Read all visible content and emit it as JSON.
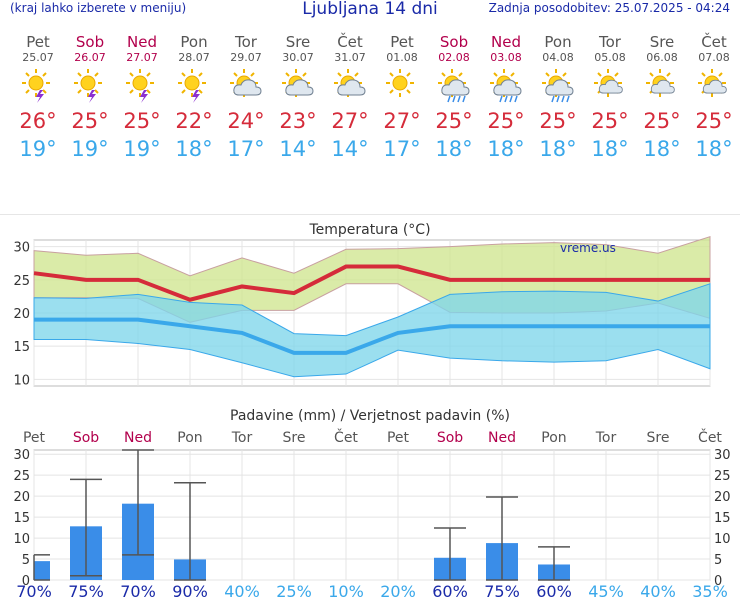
{
  "header": {
    "menu_hint": "(kraj lahko izberete v meniju)",
    "title": "Ljubljana 14 dni",
    "updated": "Zadnja posodobitev: 25.07.2025 - 04:24"
  },
  "days": [
    {
      "name": "Pet",
      "date": "25.07",
      "weekend": false,
      "icon": "sun-cloud-thunder-icon",
      "tmax": "26°",
      "tmin": "19°"
    },
    {
      "name": "Sob",
      "date": "26.07",
      "weekend": true,
      "icon": "sun-cloud-thunder-icon",
      "tmax": "25°",
      "tmin": "19°"
    },
    {
      "name": "Ned",
      "date": "27.07",
      "weekend": true,
      "icon": "sun-cloud-thunder-icon",
      "tmax": "25°",
      "tmin": "19°"
    },
    {
      "name": "Pon",
      "date": "28.07",
      "weekend": false,
      "icon": "sun-cloud-thunder-icon",
      "tmax": "22°",
      "tmin": "18°"
    },
    {
      "name": "Tor",
      "date": "29.07",
      "weekend": false,
      "icon": "sun-cloud-icon",
      "tmax": "24°",
      "tmin": "17°"
    },
    {
      "name": "Sre",
      "date": "30.07",
      "weekend": false,
      "icon": "sun-cloud-icon",
      "tmax": "23°",
      "tmin": "14°"
    },
    {
      "name": "Čet",
      "date": "31.07",
      "weekend": false,
      "icon": "sun-cloud-icon",
      "tmax": "27°",
      "tmin": "14°"
    },
    {
      "name": "Pet",
      "date": "01.08",
      "weekend": false,
      "icon": "sun-icon",
      "tmax": "27°",
      "tmin": "17°"
    },
    {
      "name": "Sob",
      "date": "02.08",
      "weekend": true,
      "icon": "sun-cloud-rain-icon",
      "tmax": "25°",
      "tmin": "18°"
    },
    {
      "name": "Ned",
      "date": "03.08",
      "weekend": true,
      "icon": "sun-cloud-rain-icon",
      "tmax": "25°",
      "tmin": "18°"
    },
    {
      "name": "Pon",
      "date": "04.08",
      "weekend": false,
      "icon": "sun-cloud-rain-icon",
      "tmax": "25°",
      "tmin": "18°"
    },
    {
      "name": "Tor",
      "date": "05.08",
      "weekend": false,
      "icon": "sun-cloud-light-icon",
      "tmax": "25°",
      "tmin": "18°"
    },
    {
      "name": "Sre",
      "date": "06.08",
      "weekend": false,
      "icon": "sun-cloud-light-icon",
      "tmax": "25°",
      "tmin": "18°"
    },
    {
      "name": "Čet",
      "date": "07.08",
      "weekend": false,
      "icon": "sun-cloud-light-icon",
      "tmax": "25°",
      "tmin": "18°"
    }
  ],
  "colors": {
    "max": "#d52b3a",
    "min": "#3aa8ea",
    "weekend": "#b2004c",
    "bar": "#3a8de8",
    "prob_low": "#3aa8ea",
    "prob_high": "#1a2aa8"
  },
  "chart_data": [
    {
      "type": "line",
      "title": "Temperatura (°C)",
      "watermark": "vreme.us",
      "ylim": [
        9,
        31
      ],
      "yticks": [
        10,
        15,
        20,
        25,
        30
      ],
      "grid": true,
      "categories": [
        "Pet",
        "Sob",
        "Ned",
        "Pon",
        "Tor",
        "Sre",
        "Čet",
        "Pet",
        "Sob",
        "Ned",
        "Pon",
        "Tor",
        "Sre",
        "Čet"
      ],
      "series": [
        {
          "role": "max",
          "values": [
            26,
            25,
            25,
            22,
            24,
            23,
            27,
            27,
            25,
            25,
            25,
            25,
            25,
            25
          ]
        },
        {
          "role": "max-range-high",
          "values": [
            29.4,
            28.7,
            29,
            25.6,
            28.3,
            26,
            29.6,
            29.7,
            30,
            30.4,
            30.6,
            30.3,
            29,
            31.5
          ]
        },
        {
          "role": "max-range-low",
          "values": [
            22.3,
            22.3,
            22.2,
            18.6,
            20.4,
            20.4,
            24.4,
            24.4,
            20.1,
            20,
            20,
            20.3,
            21.5,
            19.2
          ]
        },
        {
          "role": "min",
          "values": [
            19,
            19,
            19,
            18,
            17,
            14,
            14,
            17,
            18,
            18,
            18,
            18,
            18,
            18
          ]
        },
        {
          "role": "min-range-high",
          "values": [
            22.3,
            22.2,
            22.8,
            21.6,
            21.2,
            16.9,
            16.6,
            19.4,
            22.8,
            23.2,
            23.3,
            23.1,
            21.8,
            24.4
          ]
        },
        {
          "role": "min-range-low",
          "values": [
            16,
            16,
            15.4,
            14.5,
            12.5,
            10.4,
            10.8,
            14.4,
            13.2,
            12.8,
            12.6,
            12.8,
            14.5,
            11.6
          ]
        }
      ]
    },
    {
      "type": "bar",
      "title": "Padavine (mm) / Verjetnost padavin (%)",
      "ylim": [
        0,
        31
      ],
      "yticks": [
        0,
        5,
        10,
        15,
        20,
        25,
        30
      ],
      "categories": [
        "Pet",
        "Sob",
        "Ned",
        "Pon",
        "Tor",
        "Sre",
        "Čet",
        "Pet",
        "Sob",
        "Ned",
        "Pon",
        "Tor",
        "Sre",
        "Čet"
      ],
      "values": [
        4.5,
        12.8,
        18.2,
        4.9,
        0,
        0,
        0,
        0,
        5.3,
        8.8,
        3.7,
        0,
        0,
        0
      ],
      "range_low": [
        0,
        1,
        6,
        0,
        null,
        null,
        null,
        null,
        0,
        0,
        0,
        null,
        null,
        null
      ],
      "range_high": [
        6,
        24,
        31,
        23.2,
        null,
        null,
        null,
        null,
        12.4,
        19.8,
        7.9,
        null,
        null,
        null
      ],
      "probability": [
        "70%",
        "75%",
        "70%",
        "90%",
        "40%",
        "25%",
        "10%",
        "20%",
        "60%",
        "75%",
        "60%",
        "45%",
        "40%",
        "35%"
      ],
      "probability_high": [
        true,
        true,
        true,
        true,
        false,
        false,
        false,
        false,
        true,
        true,
        true,
        false,
        false,
        false
      ]
    }
  ]
}
